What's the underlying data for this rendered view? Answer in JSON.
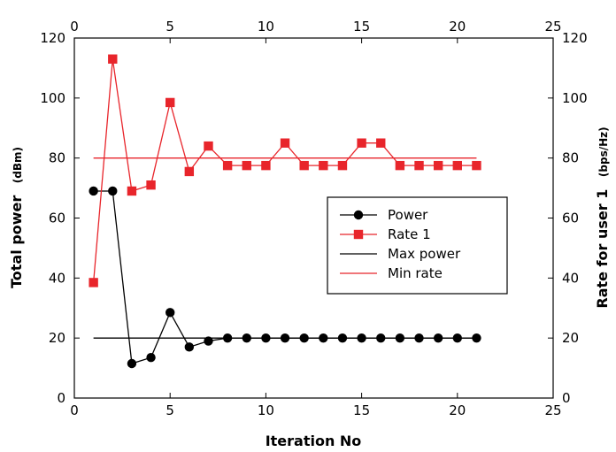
{
  "chart_data": {
    "type": "line",
    "xlabel": "Iteration No",
    "ylabel_left": "Total power",
    "ylabel_left_unit": "(dBm)",
    "ylabel_right": "Rate for user 1",
    "ylabel_right_unit": "(bps/Hz)",
    "xlim": [
      0,
      25
    ],
    "ylim": [
      0,
      120
    ],
    "xticks": [
      "0",
      "5",
      "10",
      "15",
      "20",
      "25"
    ],
    "yticks": [
      "0",
      "20",
      "40",
      "60",
      "80",
      "100",
      "120"
    ],
    "grid": false,
    "legend_position": "right",
    "series": [
      {
        "name": "Power",
        "color": "#000000",
        "marker": "circle",
        "x": [
          1,
          2,
          3,
          4,
          5,
          6,
          7,
          8,
          9,
          10,
          11,
          12,
          13,
          14,
          15,
          16,
          17,
          18,
          19,
          20,
          21
        ],
        "y": [
          69,
          69,
          11.5,
          13.5,
          28.5,
          17,
          19,
          20,
          20,
          20,
          20,
          20,
          20,
          20,
          20,
          20,
          20,
          20,
          20,
          20,
          20
        ]
      },
      {
        "name": "Rate 1",
        "color": "#e8252b",
        "marker": "square",
        "x": [
          1,
          2,
          3,
          4,
          5,
          6,
          7,
          8,
          9,
          10,
          11,
          12,
          13,
          14,
          15,
          16,
          17,
          18,
          19,
          20,
          21
        ],
        "y": [
          38.5,
          113,
          69,
          71,
          98.5,
          75.5,
          84,
          77.5,
          77.5,
          77.5,
          85,
          77.5,
          77.5,
          77.5,
          85,
          85,
          77.5,
          77.5,
          77.5,
          77.5,
          77.5
        ]
      },
      {
        "name": "Max power",
        "color": "#000000",
        "marker": "none",
        "x": [
          1,
          21
        ],
        "y": [
          20,
          20
        ]
      },
      {
        "name": "Min rate",
        "color": "#e8252b",
        "marker": "none",
        "x": [
          1,
          21
        ],
        "y": [
          80,
          80
        ]
      }
    ]
  }
}
